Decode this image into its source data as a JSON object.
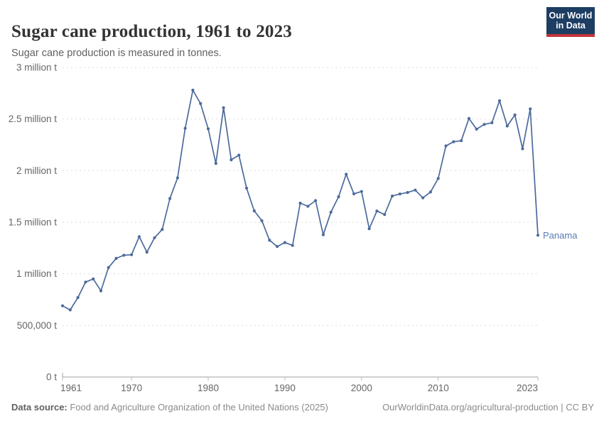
{
  "header": {
    "title": "Sugar cane production, 1961 to 2023",
    "subtitle": "Sugar cane production is measured in tonnes."
  },
  "logo": {
    "line1": "Our World",
    "line2": "in Data",
    "bg_color": "#1d3d63",
    "accent_color": "#c2343a"
  },
  "chart_data": {
    "type": "line",
    "title": "Sugar cane production, 1961 to 2023",
    "xlabel": "",
    "ylabel": "",
    "grid": "horizontal-dashed",
    "legend_position": "end-of-line-label",
    "ylim": [
      0,
      3000000
    ],
    "ytick_values": [
      0,
      500000,
      1000000,
      1500000,
      2000000,
      2500000,
      3000000
    ],
    "ytick_labels": [
      "0 t",
      "500,000 t",
      "1 million t",
      "1.5 million t",
      "2 million t",
      "2.5 million t",
      "3 million t"
    ],
    "xticks": [
      1961,
      1970,
      1980,
      1990,
      2000,
      2010,
      2023
    ],
    "x": [
      1961,
      1962,
      1963,
      1964,
      1965,
      1966,
      1967,
      1968,
      1969,
      1970,
      1971,
      1972,
      1973,
      1974,
      1975,
      1976,
      1977,
      1978,
      1979,
      1980,
      1981,
      1982,
      1983,
      1984,
      1985,
      1986,
      1987,
      1988,
      1989,
      1990,
      1991,
      1992,
      1993,
      1994,
      1995,
      1996,
      1997,
      1998,
      1999,
      2000,
      2001,
      2002,
      2003,
      2004,
      2005,
      2006,
      2007,
      2008,
      2009,
      2010,
      2011,
      2012,
      2013,
      2014,
      2015,
      2016,
      2017,
      2018,
      2019,
      2020,
      2021,
      2022,
      2023
    ],
    "series": [
      {
        "name": "Panama",
        "color": "#4C6A9C",
        "label_color": "#5b7bb5",
        "values": [
          690000,
          650000,
          770000,
          920000,
          950000,
          835000,
          1060000,
          1150000,
          1180000,
          1185000,
          1360000,
          1210000,
          1350000,
          1430000,
          1730000,
          1930000,
          2410000,
          2780000,
          2650000,
          2405000,
          2070000,
          2610000,
          2105000,
          2150000,
          1830000,
          1610000,
          1515000,
          1325000,
          1265000,
          1303000,
          1275000,
          1685000,
          1655000,
          1710000,
          1378000,
          1598000,
          1747000,
          1965000,
          1775000,
          1798000,
          1437000,
          1609000,
          1574000,
          1754000,
          1774000,
          1788000,
          1812000,
          1736000,
          1793000,
          1924000,
          2240000,
          2280000,
          2290000,
          2505000,
          2402000,
          2448000,
          2464000,
          2678000,
          2432000,
          2540000,
          2212000,
          2598000,
          1374000
        ]
      }
    ],
    "colors": {
      "gridline": "#dddddd",
      "axis": "#a1a1a1",
      "tick_label": "#666666"
    }
  },
  "footer": {
    "datasource_label": "Data source:",
    "datasource_text": " Food and Agriculture Organization of the United Nations (2025)",
    "credit_text": "OurWorldinData.org/agricultural-production | CC BY"
  }
}
